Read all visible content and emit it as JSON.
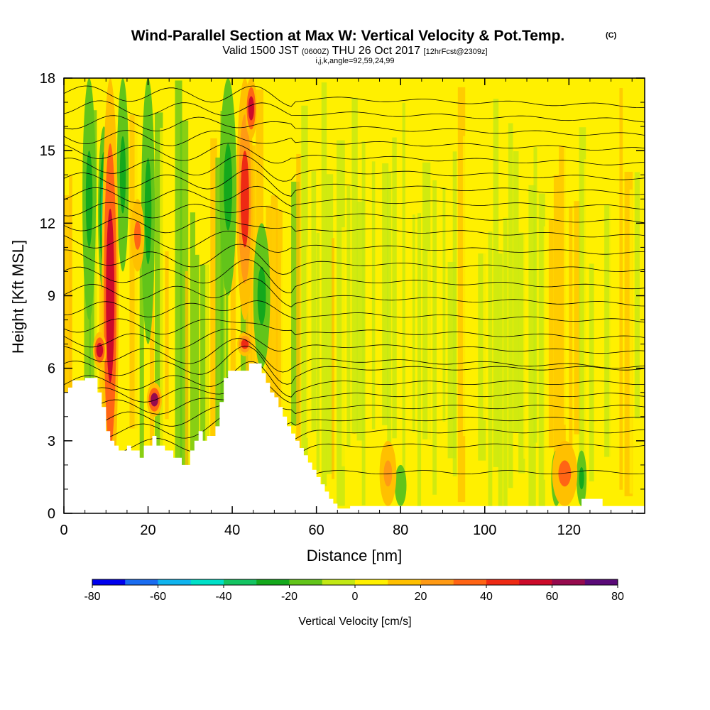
{
  "chart_data": {
    "type": "heatmap",
    "title": "Wind-Parallel Section at Max W: Vertical Velocity & Pot.Temp.",
    "title_mark": "(C)",
    "subtitle": {
      "valid": "Valid 1500 JST",
      "utc": "(0600Z)",
      "date": "THU 26 Oct 2017",
      "forecast": "[12hrFcst@2309z]"
    },
    "grid_info": "i,j,k,angle=92,59,24,99",
    "xlabel": "Distance [nm]",
    "ylabel": "Height [Kft MSL]",
    "xlim": [
      0,
      138
    ],
    "ylim": [
      0,
      18
    ],
    "x_ticks": [
      "0",
      "20",
      "40",
      "60",
      "80",
      "100",
      "120"
    ],
    "y_ticks": [
      "0",
      "3",
      "6",
      "9",
      "12",
      "15",
      "18"
    ],
    "colorbar": {
      "label": "Vertical Velocity [cm/s]",
      "range": [
        -80,
        80
      ],
      "step": 10,
      "tick_labels": [
        "-80",
        "-60",
        "-40",
        "-20",
        "0",
        "20",
        "40",
        "60",
        "80"
      ],
      "colors": [
        "#0000ee",
        "#1a6cf0",
        "#10b4ee",
        "#00e0c8",
        "#14c462",
        "#14a81c",
        "#62c41a",
        "#c2e814",
        "#fff000",
        "#ffc000",
        "#ff9a14",
        "#ff6414",
        "#ee2a14",
        "#cc0a2a",
        "#960a4e",
        "#5a0a78"
      ]
    },
    "terrain": [
      [
        0,
        5.0
      ],
      [
        1,
        5.0
      ],
      [
        1,
        5.2
      ],
      [
        2,
        5.2
      ],
      [
        2,
        5.5
      ],
      [
        4,
        5.5
      ],
      [
        4,
        5.5
      ],
      [
        5,
        5.5
      ],
      [
        5,
        5.6
      ],
      [
        8,
        5.6
      ],
      [
        8,
        5.0
      ],
      [
        9,
        5.0
      ],
      [
        9,
        4.4
      ],
      [
        10,
        4.4
      ],
      [
        10,
        3.4
      ],
      [
        11,
        3.4
      ],
      [
        11,
        3.0
      ],
      [
        12,
        3.0
      ],
      [
        12,
        2.8
      ],
      [
        13,
        2.8
      ],
      [
        13,
        2.6
      ],
      [
        15,
        2.6
      ],
      [
        15,
        2.8
      ],
      [
        16,
        2.8
      ],
      [
        16,
        2.6
      ],
      [
        18,
        2.6
      ],
      [
        18,
        2.3
      ],
      [
        19,
        2.3
      ],
      [
        19,
        2.8
      ],
      [
        21,
        2.8
      ],
      [
        21,
        3.2
      ],
      [
        22,
        3.2
      ],
      [
        22,
        2.8
      ],
      [
        24,
        2.8
      ],
      [
        24,
        2.6
      ],
      [
        26,
        2.6
      ],
      [
        26,
        2.3
      ],
      [
        28,
        2.3
      ],
      [
        28,
        2.0
      ],
      [
        30,
        2.0
      ],
      [
        30,
        2.6
      ],
      [
        31,
        2.6
      ],
      [
        31,
        3.0
      ],
      [
        32,
        3.0
      ],
      [
        32,
        3.4
      ],
      [
        33,
        3.4
      ],
      [
        33,
        3.0
      ],
      [
        34,
        3.0
      ],
      [
        34,
        3.2
      ],
      [
        36,
        3.2
      ],
      [
        36,
        3.6
      ],
      [
        37,
        3.6
      ],
      [
        37,
        4.6
      ],
      [
        38,
        4.6
      ],
      [
        38,
        5.6
      ],
      [
        39,
        5.6
      ],
      [
        39,
        5.9
      ],
      [
        44,
        5.9
      ],
      [
        44,
        6.2
      ],
      [
        47,
        6.2
      ],
      [
        47,
        5.8
      ],
      [
        48,
        5.8
      ],
      [
        48,
        5.4
      ],
      [
        49,
        5.4
      ],
      [
        49,
        5.0
      ],
      [
        50,
        5.0
      ],
      [
        50,
        4.8
      ],
      [
        51,
        4.8
      ],
      [
        51,
        4.4
      ],
      [
        52,
        4.4
      ],
      [
        52,
        4.0
      ],
      [
        53,
        4.0
      ],
      [
        53,
        3.6
      ],
      [
        54,
        3.6
      ],
      [
        54,
        3.3
      ],
      [
        55,
        3.3
      ],
      [
        55,
        3.0
      ],
      [
        56,
        3.0
      ],
      [
        56,
        2.7
      ],
      [
        57,
        2.7
      ],
      [
        57,
        2.4
      ],
      [
        58,
        2.4
      ],
      [
        58,
        2.1
      ],
      [
        59,
        2.1
      ],
      [
        59,
        1.8
      ],
      [
        60,
        1.8
      ],
      [
        60,
        1.5
      ],
      [
        61,
        1.5
      ],
      [
        61,
        1.2
      ],
      [
        62,
        1.2
      ],
      [
        62,
        0.9
      ],
      [
        63,
        0.9
      ],
      [
        63,
        0.6
      ],
      [
        64,
        0.6
      ],
      [
        64,
        0.4
      ],
      [
        65,
        0.4
      ],
      [
        65,
        0.2
      ],
      [
        68,
        0.2
      ],
      [
        68,
        0.3
      ],
      [
        123,
        0.3
      ],
      [
        123,
        0.6
      ],
      [
        128,
        0.6
      ],
      [
        128,
        0.3
      ],
      [
        138,
        0.3
      ]
    ],
    "updrafts": [
      {
        "x": 11,
        "w": 2.0,
        "y0": 0,
        "y1": 18,
        "value": 55
      },
      {
        "x": 8.5,
        "w": 1.6,
        "y0": 6,
        "y1": 7.5,
        "value": 55
      },
      {
        "x": 21.5,
        "w": 1.8,
        "y0": 4,
        "y1": 5.4,
        "value": 60
      },
      {
        "x": 17.5,
        "w": 1.6,
        "y0": 10,
        "y1": 13,
        "value": 30
      },
      {
        "x": 43,
        "w": 2.0,
        "y0": 8,
        "y1": 18,
        "value": 40
      },
      {
        "x": 43,
        "w": 1.8,
        "y0": 6.5,
        "y1": 7.5,
        "value": 40
      },
      {
        "x": 44.5,
        "w": 1.4,
        "y0": 15.5,
        "y1": 18,
        "value": 55
      },
      {
        "x": 119,
        "w": 3.0,
        "y0": 0.3,
        "y1": 3.0,
        "value": 30
      },
      {
        "x": 77,
        "w": 2.0,
        "y0": 0.3,
        "y1": 3.0,
        "value": 20
      }
    ],
    "downdrafts": [
      {
        "x": 6,
        "w": 1.6,
        "y0": 8,
        "y1": 18,
        "value": -25
      },
      {
        "x": 9.5,
        "w": 1.4,
        "y0": 9,
        "y1": 16,
        "value": -40
      },
      {
        "x": 14,
        "w": 1.4,
        "y0": 10,
        "y1": 18,
        "value": -25
      },
      {
        "x": 20,
        "w": 1.6,
        "y0": 7,
        "y1": 18,
        "value": -25
      },
      {
        "x": 39,
        "w": 2.0,
        "y0": 9,
        "y1": 18,
        "value": -25
      },
      {
        "x": 47,
        "w": 2.0,
        "y0": 6,
        "y1": 12,
        "value": -25
      },
      {
        "x": 117,
        "w": 1.2,
        "y0": 0.3,
        "y1": 2.6,
        "value": -25
      },
      {
        "x": 123,
        "w": 1.2,
        "y0": 0.3,
        "y1": 2.6,
        "value": -25
      },
      {
        "x": 80,
        "w": 1.4,
        "y0": 0.3,
        "y1": 2.0,
        "value": -20
      }
    ],
    "isentrope_heights": [
      1.7,
      2.8,
      3.4,
      3.9,
      4.4,
      4.9,
      5.4,
      6.0,
      6.6,
      7.2,
      7.8,
      8.5,
      9.2,
      9.9,
      10.6,
      11.3,
      12.0,
      12.6,
      13.2,
      13.8,
      14.4,
      15.0,
      15.6,
      16.2,
      16.8,
      17.4
    ]
  }
}
